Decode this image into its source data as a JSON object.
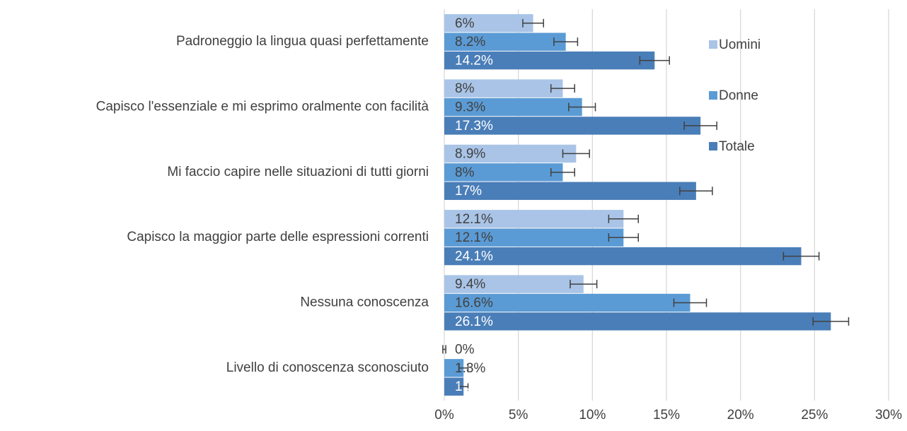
{
  "chart_data": {
    "type": "hbar",
    "categories": [
      "Padroneggio la lingua quasi perfettamente",
      "Capisco l'essenziale e mi esprimo oralmente con facilità",
      "Mi faccio capire nelle situazioni di tutti giorni",
      "Capisco la maggior parte delle espressioni correnti",
      "Nessuna conoscenza",
      "Livello di conoscenza sconosciuto"
    ],
    "series": [
      {
        "name": "Uomini",
        "color": "#a9c4e6",
        "label_color": "#404040",
        "values": [
          6,
          8,
          8.9,
          12.1,
          9.4,
          0
        ],
        "value_labels": [
          "6%",
          "8%",
          "8.9%",
          "12.1%",
          "9.4%",
          "0%"
        ],
        "errors": [
          0.7,
          0.8,
          0.9,
          1.0,
          0.9,
          0.1
        ]
      },
      {
        "name": "Donne",
        "color": "#5b9bd5",
        "label_color": "#404040",
        "values": [
          8.2,
          9.3,
          8,
          12.1,
          16.6,
          1.3
        ],
        "value_labels": [
          "8.2%",
          "9.3%",
          "8%",
          "12.1%",
          "16.6%",
          "1.3%"
        ],
        "errors": [
          0.8,
          0.9,
          0.8,
          1.0,
          1.1,
          0.3
        ]
      },
      {
        "name": "Totale",
        "color": "#4a7eb8",
        "label_color": "#ffffff",
        "values": [
          14.2,
          17.3,
          17,
          24.1,
          26.1,
          1.3
        ],
        "value_labels": [
          "14.2%",
          "17.3%",
          "17%",
          "24.1%",
          "26.1%",
          "1.3%"
        ],
        "errors": [
          1.0,
          1.1,
          1.1,
          1.2,
          1.2,
          0.3
        ]
      }
    ],
    "xlim": [
      0,
      30
    ],
    "xticks": [
      {
        "value": 0,
        "label": "0%"
      },
      {
        "value": 5,
        "label": "5%"
      },
      {
        "value": 10,
        "label": "10%"
      },
      {
        "value": 15,
        "label": "15%"
      },
      {
        "value": 20,
        "label": "20%"
      },
      {
        "value": 25,
        "label": "25%"
      },
      {
        "value": 30,
        "label": "30%"
      }
    ],
    "grid": true,
    "legend": "right"
  }
}
